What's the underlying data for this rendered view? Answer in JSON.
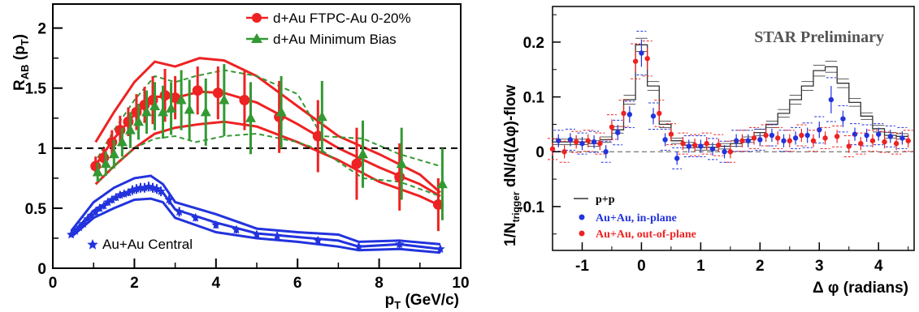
{
  "chart_data": [
    {
      "type": "scatter",
      "title": "",
      "xlabel": "p_T (GeV/c)",
      "ylabel": "R_AB (p_T)",
      "xlim": [
        0,
        10
      ],
      "ylim": [
        0,
        2.2
      ],
      "x_ticks": [
        "0",
        "2",
        "4",
        "6",
        "8",
        "10"
      ],
      "y_ticks": [
        "0",
        "0.5",
        "1",
        "1.5",
        "2"
      ],
      "reference_line": 1,
      "legend_placement": "top-right",
      "series": [
        {
          "name": "d+Au FTPC-Au 0-20%",
          "color": "#ee2222",
          "marker": "circle",
          "x": [
            1.05,
            1.25,
            1.45,
            1.65,
            1.85,
            2.05,
            2.25,
            2.45,
            2.75,
            3.0,
            3.55,
            4.05,
            4.7,
            5.55,
            6.5,
            7.45,
            8.5,
            9.45
          ],
          "y": [
            0.85,
            0.92,
            1.05,
            1.15,
            1.22,
            1.3,
            1.36,
            1.4,
            1.44,
            1.42,
            1.48,
            1.46,
            1.4,
            1.26,
            1.1,
            0.87,
            0.76,
            0.53
          ],
          "err": [
            0.08,
            0.08,
            0.1,
            0.12,
            0.12,
            0.15,
            0.15,
            0.2,
            0.22,
            0.18,
            0.2,
            0.22,
            0.25,
            0.3,
            0.3,
            0.3,
            0.28,
            0.22
          ]
        },
        {
          "name": "d+Au Minimum Bias",
          "color": "#339933",
          "marker": "triangle",
          "x": [
            1.1,
            1.3,
            1.5,
            1.7,
            1.9,
            2.1,
            2.3,
            2.5,
            2.7,
            2.9,
            3.15,
            3.35,
            3.75,
            4.2,
            4.85,
            5.6,
            6.6,
            7.6,
            8.55,
            9.55
          ],
          "y": [
            0.8,
            0.87,
            0.95,
            1.05,
            1.15,
            1.22,
            1.3,
            1.35,
            1.3,
            1.33,
            1.4,
            1.32,
            1.3,
            1.4,
            1.25,
            1.3,
            1.26,
            0.95,
            0.87,
            0.7
          ],
          "err": [
            0.08,
            0.1,
            0.12,
            0.12,
            0.15,
            0.15,
            0.18,
            0.2,
            0.22,
            0.22,
            0.25,
            0.25,
            0.28,
            0.3,
            0.3,
            0.3,
            0.3,
            0.28,
            0.3,
            0.3
          ]
        },
        {
          "name": "Au+Au Central",
          "color": "#2233dd",
          "marker": "star",
          "x": [
            0.45,
            0.55,
            0.65,
            0.75,
            0.85,
            0.95,
            1.05,
            1.15,
            1.25,
            1.35,
            1.45,
            1.55,
            1.65,
            1.75,
            1.85,
            1.95,
            2.05,
            2.15,
            2.25,
            2.35,
            2.45,
            2.55,
            2.65,
            2.85,
            3.1,
            3.5,
            4.0,
            4.5,
            5.0,
            5.5,
            6.5,
            7.5,
            8.5,
            9.5
          ],
          "y": [
            0.28,
            0.31,
            0.34,
            0.37,
            0.41,
            0.44,
            0.47,
            0.5,
            0.52,
            0.55,
            0.57,
            0.59,
            0.61,
            0.62,
            0.63,
            0.65,
            0.66,
            0.67,
            0.67,
            0.68,
            0.67,
            0.66,
            0.64,
            0.57,
            0.47,
            0.42,
            0.36,
            0.32,
            0.28,
            0.27,
            0.23,
            0.18,
            0.2,
            0.16
          ],
          "err": [
            0.02,
            0.02,
            0.02,
            0.02,
            0.02,
            0.02,
            0.03,
            0.03,
            0.03,
            0.03,
            0.03,
            0.03,
            0.03,
            0.03,
            0.03,
            0.04,
            0.04,
            0.04,
            0.04,
            0.04,
            0.04,
            0.04,
            0.04,
            0.04,
            0.04,
            0.03,
            0.03,
            0.03,
            0.03,
            0.03,
            0.03,
            0.03,
            0.04,
            0.03
          ]
        }
      ],
      "bands": [
        {
          "color": "#ee2222",
          "style": "solid",
          "upper": {
            "x": [
              1.05,
              1.5,
              2.0,
              2.5,
              3.0,
              3.6,
              4.2,
              5.0,
              6.0,
              7.0,
              8.0,
              9.0,
              9.5
            ],
            "y": [
              1.05,
              1.3,
              1.55,
              1.72,
              1.68,
              1.75,
              1.73,
              1.6,
              1.35,
              1.1,
              0.95,
              0.78,
              0.63
            ]
          },
          "lower": {
            "x": [
              1.05,
              1.5,
              2.0,
              2.5,
              3.0,
              3.6,
              4.2,
              5.0,
              6.0,
              7.0,
              8.0,
              9.0,
              9.5
            ],
            "y": [
              0.7,
              0.85,
              1.0,
              1.12,
              1.17,
              1.2,
              1.22,
              1.18,
              1.05,
              0.9,
              0.72,
              0.6,
              0.52
            ]
          },
          "central": {
            "x": [
              1.05,
              1.5,
              2.0,
              2.5,
              3.0,
              3.6,
              4.2,
              5.0,
              6.0,
              7.0,
              8.0,
              9.0,
              9.5
            ],
            "y": [
              0.86,
              1.08,
              1.28,
              1.43,
              1.42,
              1.47,
              1.46,
              1.38,
              1.2,
              1.0,
              0.84,
              0.7,
              0.6
            ]
          }
        },
        {
          "color": "#339933",
          "style": "dashed",
          "upper": {
            "x": [
              1.1,
              1.5,
              2.0,
              2.5,
              3.0,
              3.5,
              4.2,
              5.0,
              6.0,
              6.6,
              7.6,
              8.5,
              9.5
            ],
            "y": [
              0.92,
              1.15,
              1.4,
              1.6,
              1.55,
              1.6,
              1.65,
              1.6,
              1.45,
              1.1,
              1.08,
              0.95,
              0.85
            ]
          },
          "lower": {
            "x": [
              1.1,
              1.5,
              2.0,
              2.5,
              3.0,
              3.5,
              4.2,
              5.0,
              6.0,
              6.6,
              7.6,
              8.5,
              9.5
            ],
            "y": [
              0.72,
              0.85,
              1.0,
              1.08,
              1.1,
              1.05,
              1.1,
              1.12,
              1.05,
              0.98,
              0.75,
              0.72,
              0.6
            ]
          }
        },
        {
          "color": "#2233dd",
          "style": "solid",
          "upper": {
            "x": [
              0.45,
              1.0,
              1.5,
              2.0,
              2.4,
              2.7,
              3.0,
              4.0,
              5.0,
              6.0,
              7.0,
              7.5,
              8.5,
              9.5
            ],
            "y": [
              0.31,
              0.55,
              0.67,
              0.75,
              0.77,
              0.7,
              0.55,
              0.45,
              0.33,
              0.3,
              0.28,
              0.22,
              0.23,
              0.2
            ]
          },
          "lower": {
            "x": [
              0.45,
              1.0,
              1.5,
              2.0,
              2.4,
              2.7,
              3.0,
              4.0,
              5.0,
              6.0,
              7.0,
              7.5,
              8.5,
              9.5
            ],
            "y": [
              0.26,
              0.42,
              0.5,
              0.57,
              0.58,
              0.55,
              0.42,
              0.3,
              0.25,
              0.22,
              0.18,
              0.15,
              0.16,
              0.13
            ]
          },
          "central": {
            "x": [
              0.45,
              1.0,
              1.5,
              2.0,
              2.4,
              2.7,
              3.0,
              4.0,
              5.0,
              6.0,
              7.0,
              7.5,
              8.5,
              9.5
            ],
            "y": [
              0.28,
              0.48,
              0.58,
              0.66,
              0.68,
              0.63,
              0.49,
              0.38,
              0.29,
              0.26,
              0.23,
              0.18,
              0.2,
              0.16
            ]
          }
        }
      ]
    },
    {
      "type": "line",
      "title": "STAR Preliminary",
      "xlabel": "Δ φ (radians)",
      "ylabel": "1/N_trigger dN/d(Δφ)-flow",
      "xlim": [
        -1.5,
        4.6
      ],
      "ylim": [
        -0.18,
        0.265
      ],
      "x_ticks": [
        "-1",
        "0",
        "1",
        "2",
        "3",
        "4"
      ],
      "y_ticks": [
        "-0.1",
        "0",
        "0.1",
        "0.2"
      ],
      "reference_line": 0,
      "legend_placement": "bottom-left",
      "series": [
        {
          "name": "p+p",
          "color": "#333333",
          "style": "histogram",
          "x": [
            -1.4,
            -1.2,
            -1.0,
            -0.8,
            -0.6,
            -0.4,
            -0.2,
            0.0,
            0.2,
            0.4,
            0.6,
            0.8,
            1.0,
            1.2,
            1.4,
            1.6,
            1.8,
            2.0,
            2.2,
            2.4,
            2.6,
            2.8,
            3.0,
            3.2,
            3.4,
            3.6,
            3.8,
            4.0,
            4.2,
            4.4
          ],
          "y": [
            0.018,
            0.018,
            0.018,
            0.015,
            0.022,
            0.04,
            0.095,
            0.195,
            0.12,
            0.05,
            0.02,
            0.012,
            0.008,
            0.008,
            0.01,
            0.015,
            0.022,
            0.035,
            0.05,
            0.07,
            0.095,
            0.12,
            0.148,
            0.155,
            0.125,
            0.09,
            0.065,
            0.042,
            0.03,
            0.028
          ],
          "err": [
            0.005,
            0.005,
            0.005,
            0.005,
            0.005,
            0.006,
            0.008,
            0.012,
            0.008,
            0.006,
            0.005,
            0.005,
            0.005,
            0.005,
            0.005,
            0.005,
            0.005,
            0.006,
            0.006,
            0.007,
            0.008,
            0.008,
            0.01,
            0.01,
            0.008,
            0.007,
            0.006,
            0.006,
            0.005,
            0.005
          ]
        },
        {
          "name": "Au+Au, in-plane",
          "color": "#2233dd",
          "marker": "circle",
          "x": [
            -1.4,
            -1.2,
            -1.0,
            -0.8,
            -0.6,
            -0.4,
            -0.2,
            0.0,
            0.2,
            0.4,
            0.6,
            0.8,
            1.0,
            1.2,
            1.4,
            1.6,
            1.8,
            2.0,
            2.2,
            2.4,
            2.6,
            2.8,
            3.0,
            3.2,
            3.4,
            3.6,
            3.8,
            4.0,
            4.2,
            4.4
          ],
          "y": [
            0.02,
            0.022,
            0.015,
            0.018,
            0.0,
            0.035,
            0.068,
            0.18,
            0.065,
            0.022,
            -0.012,
            0.01,
            0.01,
            0.005,
            0.0,
            0.02,
            0.02,
            0.022,
            0.03,
            0.02,
            0.025,
            0.03,
            0.04,
            0.095,
            0.06,
            0.032,
            0.03,
            0.032,
            0.028,
            0.025
          ],
          "err": [
            0.012,
            0.012,
            0.012,
            0.012,
            0.012,
            0.014,
            0.015,
            0.025,
            0.015,
            0.012,
            0.012,
            0.012,
            0.012,
            0.012,
            0.012,
            0.012,
            0.012,
            0.012,
            0.012,
            0.012,
            0.012,
            0.014,
            0.015,
            0.025,
            0.015,
            0.012,
            0.012,
            0.012,
            0.012,
            0.012
          ]
        },
        {
          "name": "Au+Au, out-of-plane",
          "color": "#ee2222",
          "marker": "circle",
          "x": [
            -1.5,
            -1.3,
            -1.1,
            -0.9,
            -0.7,
            -0.5,
            -0.3,
            -0.1,
            0.1,
            0.3,
            0.5,
            0.7,
            0.9,
            1.1,
            1.3,
            1.5,
            1.7,
            1.9,
            2.1,
            2.3,
            2.5,
            2.7,
            2.9,
            3.1,
            3.3,
            3.5,
            3.7,
            3.9,
            4.1,
            4.3,
            4.5
          ],
          "y": [
            0.005,
            0.0,
            0.018,
            0.02,
            0.015,
            0.045,
            0.07,
            0.165,
            0.17,
            0.07,
            0.032,
            0.015,
            0.012,
            0.015,
            0.012,
            0.0,
            0.02,
            0.025,
            0.03,
            0.025,
            0.02,
            0.03,
            0.02,
            0.025,
            0.028,
            0.01,
            0.015,
            0.02,
            0.018,
            0.015,
            0.02
          ],
          "err": [
            0.012,
            0.012,
            0.012,
            0.012,
            0.012,
            0.014,
            0.015,
            0.02,
            0.02,
            0.015,
            0.012,
            0.012,
            0.012,
            0.012,
            0.012,
            0.012,
            0.012,
            0.012,
            0.012,
            0.012,
            0.012,
            0.012,
            0.012,
            0.012,
            0.012,
            0.012,
            0.012,
            0.012,
            0.012,
            0.012,
            0.012
          ]
        }
      ]
    }
  ],
  "text": {
    "left_ylabel_main": "R",
    "left_ylabel_sub": "AB",
    "left_ylabel_tail": " (p",
    "left_ylabel_sub2": "T",
    "left_ylabel_close": ")",
    "left_xlabel_main": "p",
    "left_xlabel_sub": "T",
    "left_xlabel_tail": " (GeV/c)",
    "right_ylabel_a": "1/N",
    "right_ylabel_sub": "trigger",
    "right_ylabel_b": " dN/d(Δφ)-flow",
    "right_xlabel": "Δ φ (radians)"
  }
}
